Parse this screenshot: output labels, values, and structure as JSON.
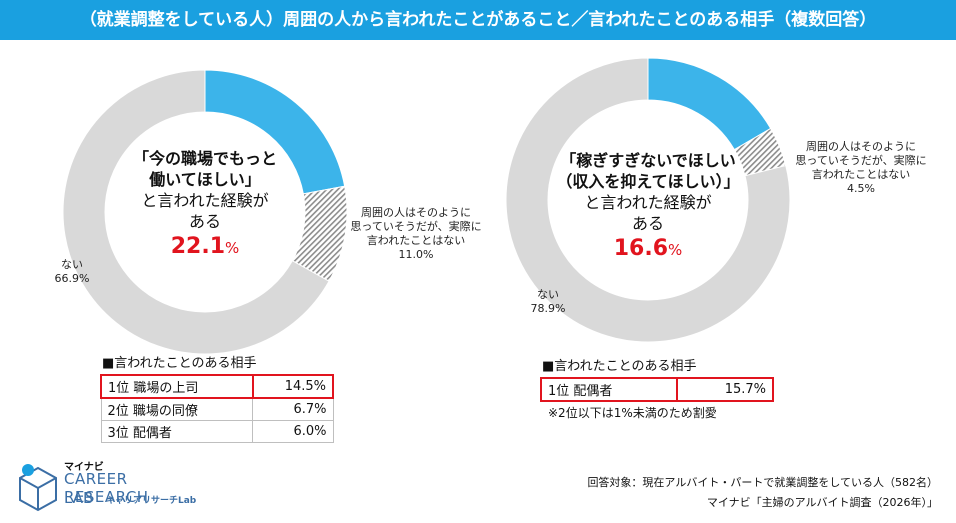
{
  "header": {
    "title": "（就業調整をしている人）周囲の人から言われたことがあること／言われたことのある相手（複数回答）"
  },
  "colors": {
    "header": "#1aa0e0",
    "said": "#3cb4ea",
    "surrounding": "#8c8c8c",
    "none": "#d9d9d9",
    "accent_red": "#e1141e"
  },
  "chart_data": [
    {
      "type": "pie",
      "donut": true,
      "center_text": [
        "「今の職場でもっと",
        "働いてほしい」",
        "と言われた経験が",
        "ある"
      ],
      "highlight": {
        "value": "22.1",
        "unit": "%"
      },
      "segments": [
        {
          "key": "said",
          "value": 22.1
        },
        {
          "key": "surrounding",
          "value": 11.0,
          "label": [
            "周囲の人はそのように",
            "思っていそうだが、実際に",
            "言われたことはない",
            "11.0%"
          ]
        },
        {
          "key": "none",
          "value": 66.9,
          "label": [
            "ない",
            "66.9%"
          ]
        }
      ],
      "ranking": {
        "title": "■言われたことのある相手",
        "rows": [
          {
            "rank": "1位",
            "name": "職場の上司",
            "value": "14.5%"
          },
          {
            "rank": "2位",
            "name": "職場の同僚",
            "value": "6.7%"
          },
          {
            "rank": "3位",
            "name": "配偶者",
            "value": "6.0%"
          }
        ]
      }
    },
    {
      "type": "pie",
      "donut": true,
      "center_text": [
        "「稼ぎすぎないでほしい",
        "（収入を抑えてほしい）」",
        "と言われた経験が",
        "ある"
      ],
      "highlight": {
        "value": "16.6",
        "unit": "%"
      },
      "segments": [
        {
          "key": "said",
          "value": 16.6
        },
        {
          "key": "surrounding",
          "value": 4.5,
          "label": [
            "周囲の人はそのように",
            "思っていそうだが、実際に",
            "言われたことはない",
            "4.5%"
          ]
        },
        {
          "key": "none",
          "value": 78.9,
          "label": [
            "ない",
            "78.9%"
          ]
        }
      ],
      "ranking": {
        "title": "■言われたことのある相手",
        "rows": [
          {
            "rank": "1位",
            "name": "配偶者",
            "value": "15.7%"
          }
        ],
        "note": "※2位以下は1%未満のため割愛"
      }
    }
  ],
  "footer": {
    "target": "回答対象：現在アルバイト・パートで就業調整をしている人（582名）",
    "source": "マイナビ「主婦のアルバイト調査（2026年）」"
  },
  "logo": {
    "brand": "マイナビ",
    "line1": "CAREER RESEARCH",
    "line2": "LAB",
    "line3": "キャリアリサーチLab"
  }
}
